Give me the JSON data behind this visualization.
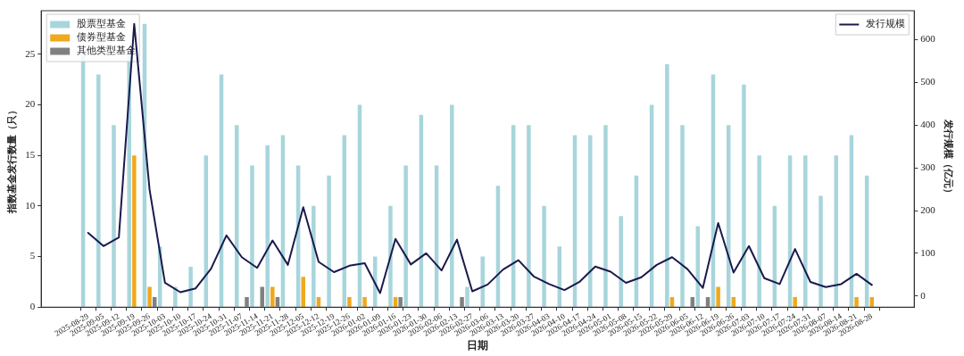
{
  "chart_data": {
    "type": "bar",
    "xlabel": "日期",
    "ylabel": "指数基金发行数量（只）",
    "y2label": "发行规模（亿元）",
    "categories": [
      "2025-08-29",
      "2025-09-05",
      "2025-09-12",
      "2025-09-19",
      "2025-09-26",
      "2025-10-03",
      "2025-10-10",
      "2025-10-17",
      "2025-10-24",
      "2025-10-31",
      "2025-11-07",
      "2025-11-14",
      "2025-11-21",
      "2025-11-28",
      "2025-12-05",
      "2025-12-12",
      "2025-12-19",
      "2025-12-26",
      "2026-01-02",
      "2026-01-09",
      "2026-01-16",
      "2026-01-23",
      "2026-01-30",
      "2026-02-06",
      "2026-02-13",
      "2026-02-27",
      "2026-03-06",
      "2026-03-13",
      "2026-03-20",
      "2026-03-27",
      "2026-04-03",
      "2026-04-10",
      "2026-04-17",
      "2026-04-24",
      "2026-05-01",
      "2026-05-08",
      "2026-05-15",
      "2026-05-22",
      "2026-05-29",
      "2026-06-05",
      "2026-06-12",
      "2026-06-19",
      "2026-06-26",
      "2026-07-03",
      "2026-07-10",
      "2026-07-17",
      "2026-07-24",
      "2026-07-31",
      "2026-08-07",
      "2026-08-14",
      "2026-08-21",
      "2026-08-28"
    ],
    "series": [
      {
        "name": "股票型基金",
        "color": "#a8d5dc",
        "values": [
          26,
          23,
          18,
          25,
          28,
          6,
          2,
          4,
          15,
          23,
          18,
          14,
          16,
          17,
          14,
          10,
          13,
          17,
          20,
          5,
          10,
          14,
          19,
          14,
          20,
          2,
          5,
          12,
          18,
          18,
          10,
          6,
          17,
          17,
          18,
          9,
          13,
          20,
          24,
          18,
          8,
          23,
          18,
          22,
          15,
          10,
          15,
          15,
          11,
          15,
          17,
          13
        ]
      },
      {
        "name": "债券型基金",
        "color": "#f0a81c",
        "values": [
          0,
          0,
          0,
          15,
          2,
          0,
          0,
          0,
          0,
          0,
          0,
          0,
          2,
          0,
          3,
          1,
          0,
          1,
          1,
          0,
          1,
          0,
          0,
          0,
          0,
          0,
          0,
          0,
          0,
          0,
          0,
          0,
          0,
          0,
          0,
          0,
          0,
          0,
          1,
          0,
          0,
          2,
          1,
          0,
          0,
          0,
          1,
          0,
          0,
          0,
          1,
          1
        ]
      },
      {
        "name": "其他类型基金",
        "color": "#808080",
        "values": [
          0,
          0,
          0,
          0,
          1,
          0,
          0,
          0,
          0,
          0,
          1,
          2,
          1,
          0,
          0,
          0,
          0,
          0,
          0,
          0,
          1,
          0,
          0,
          0,
          1,
          0,
          0,
          0,
          0,
          0,
          0,
          0,
          0,
          0,
          0,
          0,
          0,
          0,
          0,
          1,
          1,
          0,
          0,
          0,
          0,
          0,
          0,
          0,
          0,
          0,
          0,
          0
        ]
      },
      {
        "name": "发行规模",
        "type": "line",
        "axis": "y2",
        "color": "#1a1a4e",
        "values": [
          148,
          117,
          137,
          637,
          249,
          31,
          9,
          18,
          64,
          142,
          91,
          66,
          130,
          73,
          208,
          80,
          56,
          71,
          77,
          7,
          134,
          74,
          100,
          60,
          132,
          11,
          27,
          62,
          84,
          46,
          28,
          14,
          34,
          69,
          57,
          31,
          44,
          73,
          91,
          63,
          19,
          171,
          55,
          117,
          42,
          28,
          110,
          33,
          21,
          28,
          52,
          26
        ]
      }
    ],
    "ylim": [
      0,
      29.3
    ],
    "yticks": [
      0,
      5,
      10,
      15,
      20,
      25
    ],
    "y2lim": [
      -26,
      668
    ],
    "y2ticks": [
      0,
      100,
      200,
      300,
      400,
      500,
      600
    ],
    "grid": false,
    "legend": "top left"
  }
}
